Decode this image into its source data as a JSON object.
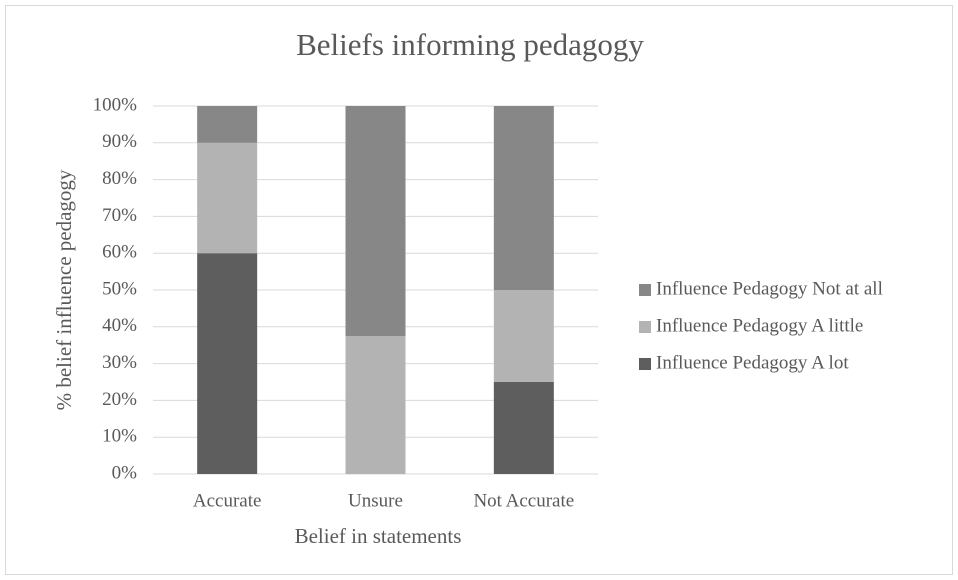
{
  "chart_data": {
    "type": "stacked_bar",
    "title": "Beliefs informing pedagogy",
    "x_label": "Belief in statements",
    "y_label": "% belief influence pedagogy",
    "categories": [
      "Accurate",
      "Unsure",
      "Not Accurate"
    ],
    "series": [
      {
        "name": "Influence Pedagogy A lot",
        "color": "#5e5e5e",
        "values": [
          60,
          0,
          25
        ]
      },
      {
        "name": "Influence Pedagogy A little",
        "color": "#b3b3b3",
        "values": [
          30,
          37.5,
          25
        ]
      },
      {
        "name": "Influence Pedagogy Not at all",
        "color": "#878787",
        "values": [
          10,
          62.5,
          50
        ]
      }
    ],
    "ylim": [
      0,
      100
    ],
    "yticks": [
      {
        "value": 0,
        "label": "0%"
      },
      {
        "value": 10,
        "label": "10%"
      },
      {
        "value": 20,
        "label": "20%"
      },
      {
        "value": 30,
        "label": "30%"
      },
      {
        "value": 40,
        "label": "40%"
      },
      {
        "value": 50,
        "label": "50%"
      },
      {
        "value": 60,
        "label": "60%"
      },
      {
        "value": 70,
        "label": "70%"
      },
      {
        "value": 80,
        "label": "80%"
      },
      {
        "value": 90,
        "label": "90%"
      },
      {
        "value": 100,
        "label": "100%"
      }
    ],
    "grid": true,
    "legend": "right"
  }
}
